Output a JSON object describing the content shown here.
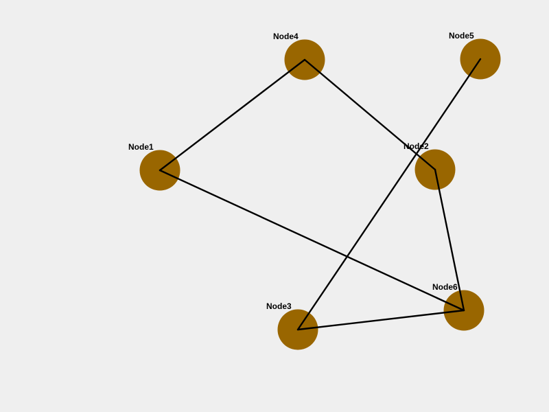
{
  "colors": {
    "background": "#efefef",
    "node_fill": "#996600",
    "edge_stroke": "#000000",
    "label": "#000000"
  },
  "nodes": [
    {
      "id": "Node1",
      "label": "Node1"
    },
    {
      "id": "Node2",
      "label": "Node2"
    },
    {
      "id": "Node3",
      "label": "Node3"
    },
    {
      "id": "Node4",
      "label": "Node4"
    },
    {
      "id": "Node5",
      "label": "Node5"
    },
    {
      "id": "Node6",
      "label": "Node6"
    }
  ],
  "edges": [
    {
      "from": "Node1",
      "to": "Node4"
    },
    {
      "from": "Node4",
      "to": "Node2"
    },
    {
      "from": "Node2",
      "to": "Node6"
    },
    {
      "from": "Node1",
      "to": "Node6"
    },
    {
      "from": "Node3",
      "to": "Node6"
    },
    {
      "from": "Node3",
      "to": "Node5"
    }
  ]
}
